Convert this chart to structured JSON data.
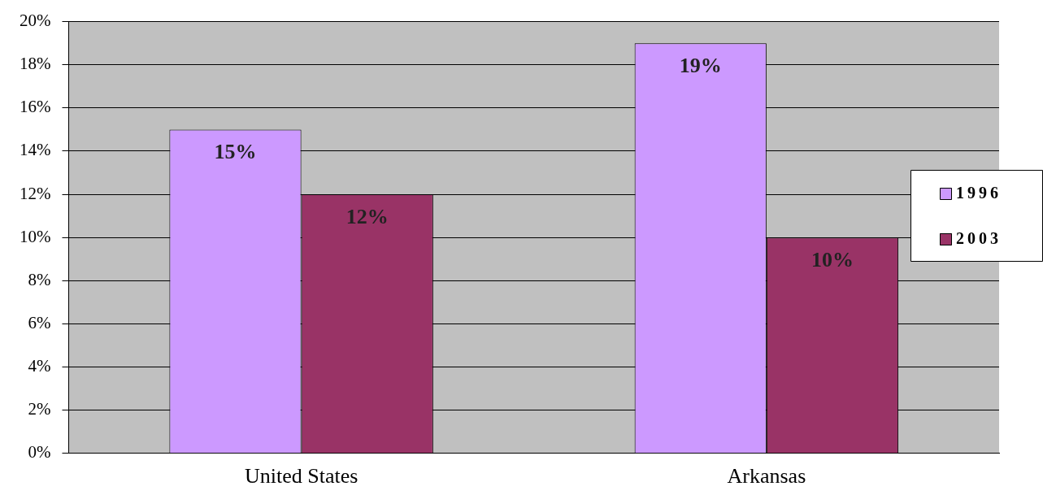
{
  "chart_data": {
    "type": "bar",
    "categories": [
      "United States",
      "Arkansas"
    ],
    "series": [
      {
        "name": "1996",
        "color": "#cc99ff",
        "values": [
          15,
          19
        ],
        "value_labels": [
          "15%",
          "19%"
        ]
      },
      {
        "name": "2003",
        "color": "#993366",
        "values": [
          12,
          10
        ],
        "value_labels": [
          "12%",
          "10%"
        ]
      }
    ],
    "ylim": [
      0,
      20
    ],
    "yticks": [
      {
        "value": 0,
        "label": "0%"
      },
      {
        "value": 2,
        "label": "2%"
      },
      {
        "value": 4,
        "label": "4%"
      },
      {
        "value": 6,
        "label": "6%"
      },
      {
        "value": 8,
        "label": "8%"
      },
      {
        "value": 10,
        "label": "10%"
      },
      {
        "value": 12,
        "label": "12%"
      },
      {
        "value": 14,
        "label": "14%"
      },
      {
        "value": 16,
        "label": "16%"
      },
      {
        "value": 18,
        "label": "18%"
      },
      {
        "value": 20,
        "label": "20%"
      }
    ],
    "grid": "y",
    "legend": "right"
  }
}
